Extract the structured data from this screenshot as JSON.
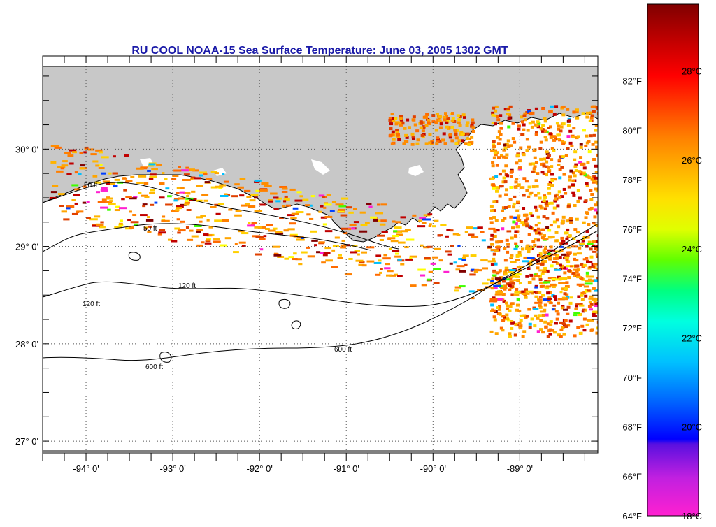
{
  "title": "RU COOL  NOAA-15  Sea Surface Temperature:  June 03, 2005 1302 GMT",
  "map": {
    "lon_range": [
      -94.5,
      -88.1
    ],
    "lat_range": [
      26.9,
      30.85
    ],
    "lat_ticks": [
      {
        "value": 30,
        "label": "30° 0'"
      },
      {
        "value": 29,
        "label": "29° 0'"
      },
      {
        "value": 28,
        "label": "28° 0'"
      },
      {
        "value": 27,
        "label": "27° 0'"
      }
    ],
    "lon_ticks": [
      {
        "value": -94,
        "label": "-94° 0'"
      },
      {
        "value": -93,
        "label": "-93° 0'"
      },
      {
        "value": -92,
        "label": "-92° 0'"
      },
      {
        "value": -91,
        "label": "-91° 0'"
      },
      {
        "value": -90,
        "label": "-90° 0'"
      },
      {
        "value": -89,
        "label": "-89° 0'"
      }
    ],
    "land_color": "#c8c8c8",
    "ocean_color": "#ffffff",
    "contour_labels": [
      "50 ft",
      "120 ft",
      "600 ft"
    ]
  },
  "colorbar": {
    "fahrenheit_labels": [
      "82°F",
      "80°F",
      "78°F",
      "76°F",
      "74°F",
      "72°F",
      "70°F",
      "68°F",
      "66°F",
      "64°F"
    ],
    "celsius_labels": [
      "28°C",
      "26°C",
      "24°C",
      "22°C",
      "20°C",
      "18°C"
    ],
    "range_c": [
      18,
      29.5
    ],
    "colors": [
      "#ff20d0",
      "#c020e0",
      "#5a10e0",
      "#0000ff",
      "#0060ff",
      "#00c0ff",
      "#00ffe0",
      "#00ff80",
      "#60ff00",
      "#e0ff00",
      "#ffe000",
      "#ffb000",
      "#ff8000",
      "#ff4000",
      "#ff0000",
      "#c00000",
      "#800000"
    ]
  }
}
